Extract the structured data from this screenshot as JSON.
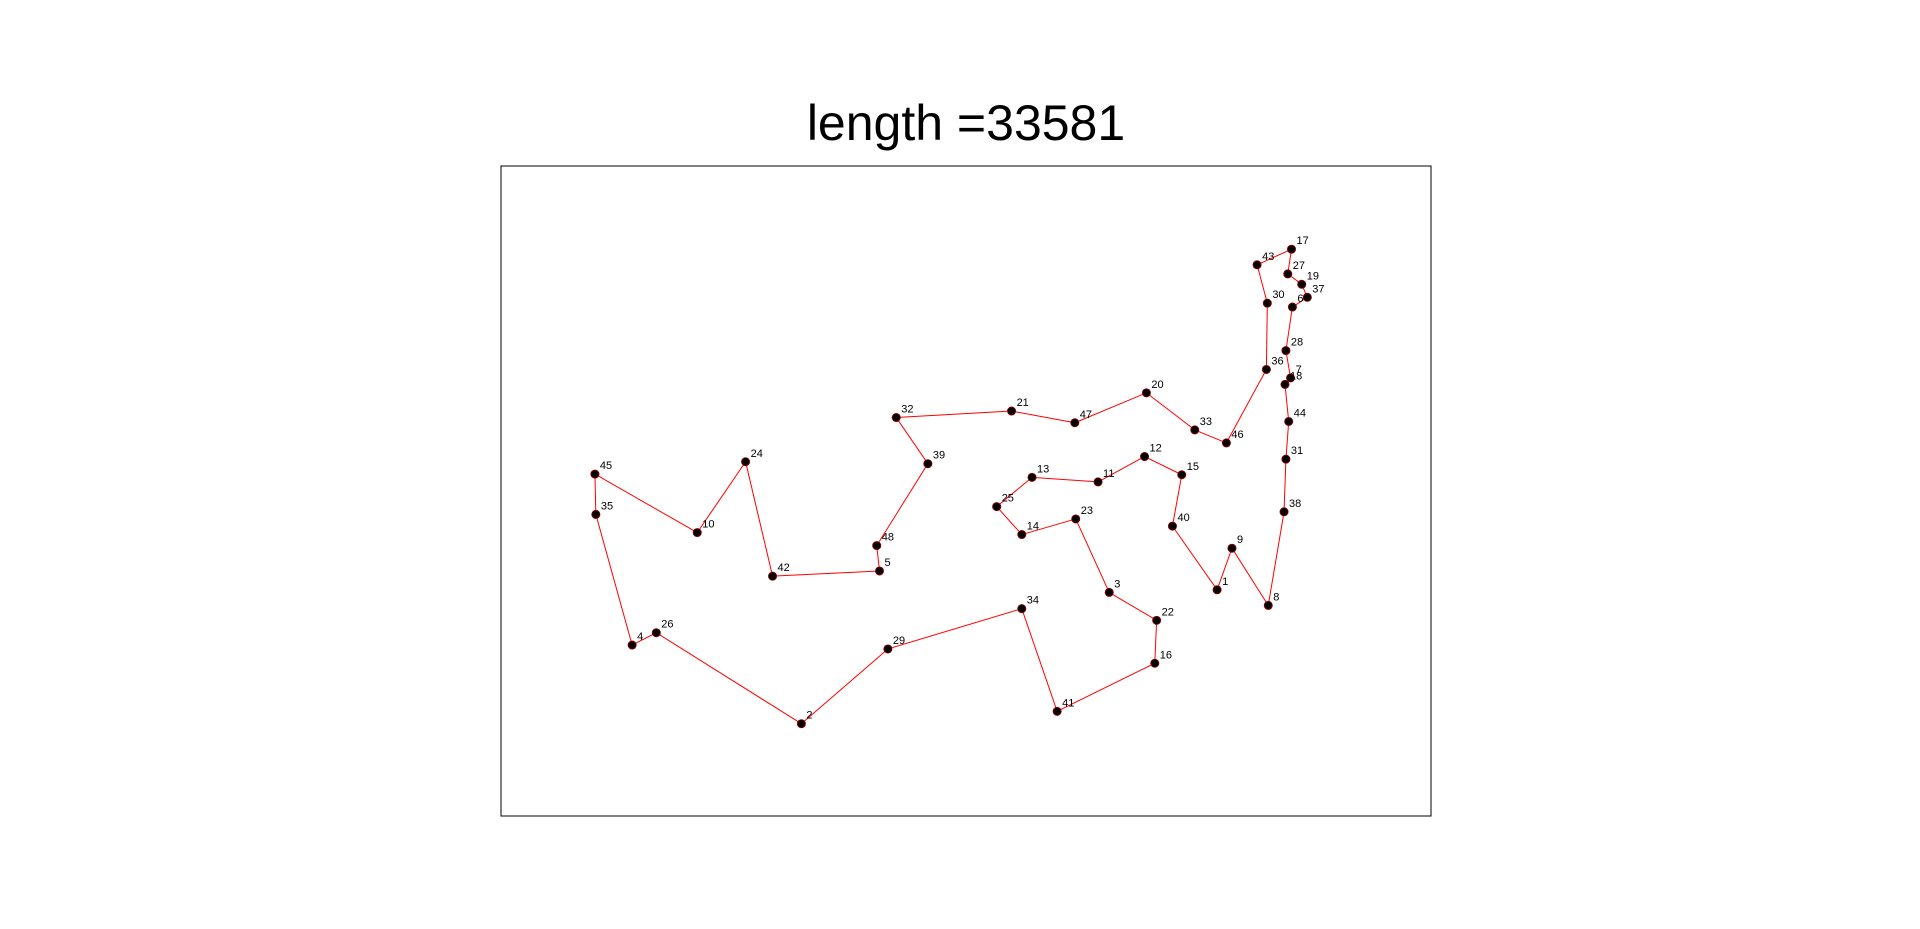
{
  "chart_data": {
    "type": "line",
    "title": "length =33581",
    "xlabel": "",
    "ylabel": "",
    "xlim": [
      0,
      100
    ],
    "ylim": [
      0,
      100
    ],
    "grid": false,
    "axes_ticks": false,
    "colors": {
      "route": "#ff0000",
      "marker": "#000000",
      "marker_edge": "#7a0000",
      "axes": "#000000"
    },
    "points": [
      {
        "id": "1",
        "x": 77.0,
        "y": 34.8
      },
      {
        "id": "2",
        "x": 32.3,
        "y": 14.2
      },
      {
        "id": "3",
        "x": 65.4,
        "y": 34.4
      },
      {
        "id": "4",
        "x": 14.1,
        "y": 26.3
      },
      {
        "id": "5",
        "x": 40.7,
        "y": 37.7
      },
      {
        "id": "6",
        "x": 85.1,
        "y": 78.3
      },
      {
        "id": "7",
        "x": 84.9,
        "y": 67.4
      },
      {
        "id": "8",
        "x": 82.5,
        "y": 32.4
      },
      {
        "id": "9",
        "x": 78.6,
        "y": 41.2
      },
      {
        "id": "10",
        "x": 21.1,
        "y": 43.6
      },
      {
        "id": "11",
        "x": 64.2,
        "y": 51.4
      },
      {
        "id": "12",
        "x": 69.2,
        "y": 55.3
      },
      {
        "id": "13",
        "x": 57.1,
        "y": 52.1
      },
      {
        "id": "14",
        "x": 56.0,
        "y": 43.3
      },
      {
        "id": "15",
        "x": 73.2,
        "y": 52.5
      },
      {
        "id": "16",
        "x": 70.3,
        "y": 23.5
      },
      {
        "id": "17",
        "x": 85.0,
        "y": 87.2
      },
      {
        "id": "18",
        "x": 84.3,
        "y": 66.4
      },
      {
        "id": "19",
        "x": 86.1,
        "y": 81.8
      },
      {
        "id": "20",
        "x": 69.4,
        "y": 65.1
      },
      {
        "id": "21",
        "x": 54.9,
        "y": 62.3
      },
      {
        "id": "22",
        "x": 70.5,
        "y": 30.1
      },
      {
        "id": "23",
        "x": 61.8,
        "y": 45.7
      },
      {
        "id": "24",
        "x": 26.3,
        "y": 54.5
      },
      {
        "id": "25",
        "x": 53.3,
        "y": 47.6
      },
      {
        "id": "26",
        "x": 16.7,
        "y": 28.2
      },
      {
        "id": "27",
        "x": 84.6,
        "y": 83.4
      },
      {
        "id": "28",
        "x": 84.4,
        "y": 71.6
      },
      {
        "id": "29",
        "x": 41.6,
        "y": 25.7
      },
      {
        "id": "30",
        "x": 82.4,
        "y": 78.9
      },
      {
        "id": "31",
        "x": 84.4,
        "y": 54.9
      },
      {
        "id": "32",
        "x": 42.5,
        "y": 61.3
      },
      {
        "id": "33",
        "x": 74.6,
        "y": 59.4
      },
      {
        "id": "34",
        "x": 56.0,
        "y": 31.9
      },
      {
        "id": "35",
        "x": 10.2,
        "y": 46.4
      },
      {
        "id": "36",
        "x": 82.3,
        "y": 68.7
      },
      {
        "id": "37",
        "x": 86.7,
        "y": 79.8
      },
      {
        "id": "38",
        "x": 84.2,
        "y": 46.8
      },
      {
        "id": "39",
        "x": 45.9,
        "y": 54.2
      },
      {
        "id": "40",
        "x": 72.2,
        "y": 44.6
      },
      {
        "id": "41",
        "x": 59.8,
        "y": 16.1
      },
      {
        "id": "42",
        "x": 29.2,
        "y": 36.9
      },
      {
        "id": "43",
        "x": 81.3,
        "y": 84.8
      },
      {
        "id": "44",
        "x": 84.7,
        "y": 60.7
      },
      {
        "id": "45",
        "x": 10.1,
        "y": 52.6
      },
      {
        "id": "46",
        "x": 78.0,
        "y": 57.4
      },
      {
        "id": "47",
        "x": 61.7,
        "y": 60.5
      },
      {
        "id": "48",
        "x": 40.4,
        "y": 41.6
      }
    ],
    "route": [
      "1",
      "9",
      "8",
      "38",
      "31",
      "44",
      "18",
      "7",
      "28",
      "6",
      "37",
      "19",
      "27",
      "17",
      "43",
      "30",
      "36",
      "46",
      "33",
      "20",
      "47",
      "21",
      "32",
      "39",
      "48",
      "5",
      "42",
      "24",
      "10",
      "45",
      "35",
      "4",
      "26",
      "2",
      "29",
      "34",
      "41",
      "16",
      "22",
      "3",
      "23",
      "14",
      "25",
      "13",
      "11",
      "12",
      "15",
      "40",
      "1"
    ]
  }
}
